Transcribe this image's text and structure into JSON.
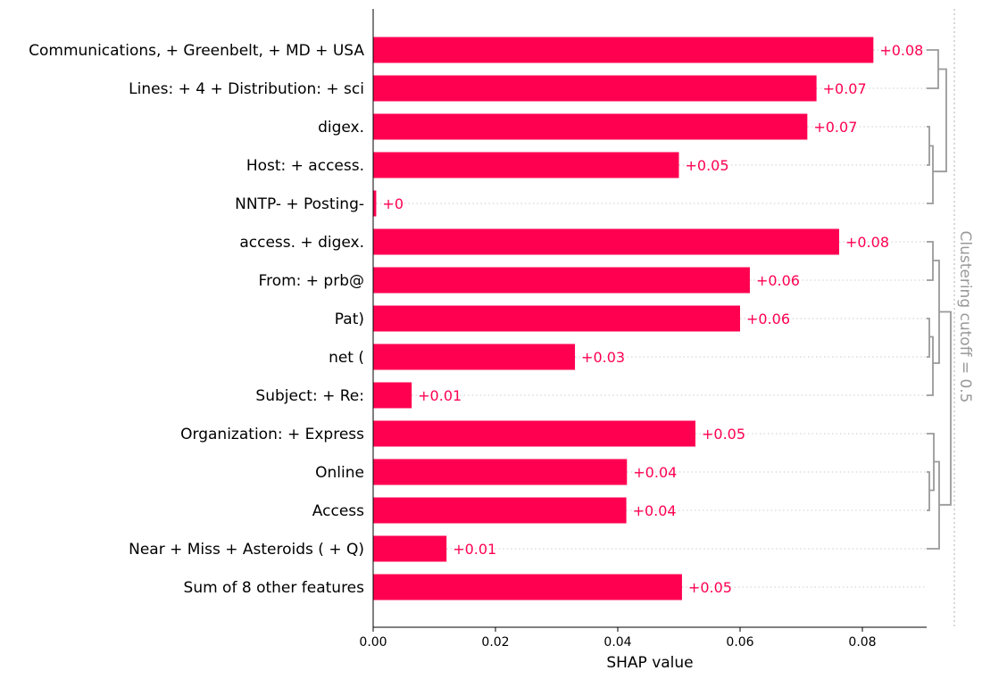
{
  "chart_data": {
    "type": "bar",
    "orientation": "horizontal",
    "categories": [
      "Communications, + Greenbelt, + MD + USA",
      "Lines: + 4 + Distribution: + sci",
      "digex.",
      "Host: + access.",
      "NNTP- + Posting-",
      "access. + digex.",
      "From: + prb@",
      "Pat)",
      "net (",
      "Subject: + Re:",
      "Organization: + Express",
      "Online",
      "Access",
      "Near + Miss + Asteroids ( + Q)",
      "Sum of 8 other features"
    ],
    "values": [
      0.0818,
      0.0725,
      0.071,
      0.05,
      0.0005,
      0.0762,
      0.0616,
      0.06,
      0.033,
      0.0063,
      0.0527,
      0.0415,
      0.0414,
      0.012,
      0.0505
    ],
    "value_labels": [
      "+0.08",
      "+0.07",
      "+0.07",
      "+0.05",
      "+0",
      "+0.08",
      "+0.06",
      "+0.06",
      "+0.03",
      "+0.01",
      "+0.05",
      "+0.04",
      "+0.04",
      "+0.01",
      "+0.05"
    ],
    "xlabel": "SHAP value",
    "xlim": [
      0,
      0.09
    ],
    "xticks": [
      0.0,
      0.02,
      0.04,
      0.06,
      0.08
    ],
    "xtick_labels": [
      "0.00",
      "0.02",
      "0.04",
      "0.06",
      "0.08"
    ],
    "clustering_label": "Clustering cutoff = 0.5",
    "colors": {
      "bar": "#ff0051",
      "value_label": "#ff0051",
      "dendrogram": "#999999",
      "gridline": "#cccccc"
    }
  }
}
